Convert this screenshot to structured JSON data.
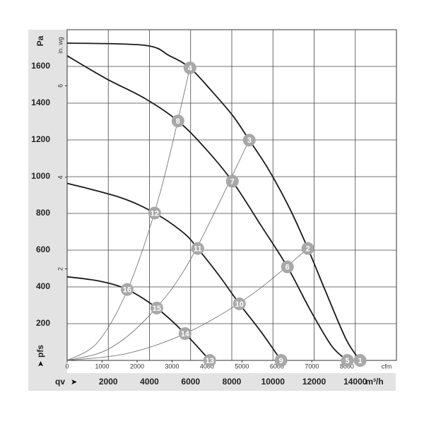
{
  "chart_data": {
    "type": "line",
    "y_label": "Pa",
    "y2_label": "in. wg",
    "x_label": "m³/h",
    "x2_label": "cfm",
    "x_symbol": "qv",
    "y_symbol": "pfs",
    "xlim": [
      0,
      16000
    ],
    "xticks": [
      2000,
      4000,
      6000,
      8000,
      10000,
      12000,
      14000
    ],
    "ylim": [
      0,
      1800
    ],
    "yticks": [
      200,
      400,
      600,
      800,
      1000,
      1200,
      1400,
      1600
    ],
    "x2lim": [
      0,
      9417.6
    ],
    "x2ticks": [
      0,
      1000,
      2000,
      3000,
      4000,
      5000,
      6000,
      7000,
      8000
    ],
    "y2lim": [
      0,
      7.226
    ],
    "y2ticks": [
      2,
      4,
      6
    ],
    "grid": true,
    "curves": [
      {
        "color": "#1a1a1a",
        "x": [
          0,
          3773,
          4974,
          5968,
          7032,
          8061,
          8850,
          9776,
          10805,
          11696,
          12520,
          13549,
          14235
        ],
        "values": [
          1727,
          1715,
          1658,
          1592,
          1465,
          1330,
          1199,
          1041,
          829,
          609,
          386,
          116,
          0
        ]
      },
      {
        "color": "#1a1a1a",
        "x": [
          0,
          1887,
          3773,
          5385,
          6689,
          8026,
          9433,
          10702,
          11834,
          12863,
          13617
        ],
        "values": [
          1658,
          1534,
          1426,
          1303,
          1157,
          975,
          732,
          509,
          270,
          77,
          0
        ]
      },
      {
        "color": "#1a1a1a",
        "x": [
          0,
          2573,
          4253,
          5660,
          6346,
          7375,
          8369,
          9433,
          10393
        ],
        "values": [
          964,
          887,
          802,
          694,
          609,
          463,
          308,
          154,
          0
        ]
      },
      {
        "color": "#1a1a1a",
        "x": [
          0,
          1544,
          2916,
          4356,
          5728,
          6929
        ],
        "values": [
          455,
          432,
          386,
          285,
          146,
          0
        ]
      }
    ],
    "system_curves": [
      {
        "color": "#666666",
        "x": [
          0,
          1500,
          3000,
          4500,
          5968
        ],
        "values": [
          0,
          101,
          402,
          905,
          1592
        ]
      },
      {
        "color": "#666666",
        "x": [
          0,
          2000,
          4000,
          6000,
          8850
        ],
        "values": [
          0,
          61,
          245,
          551,
          1199
        ]
      },
      {
        "color": "#666666",
        "x": [
          0,
          3000,
          6000,
          9000,
          11696
        ],
        "values": [
          0,
          40,
          160,
          361,
          609
        ]
      }
    ],
    "operating_points": {
      "color": "#a8a8a8",
      "labels": [
        "1",
        "2",
        "3",
        "4",
        "5",
        "6",
        "7",
        "8",
        "9",
        "10",
        "11",
        "12",
        "13",
        "14",
        "15",
        "16"
      ],
      "x": [
        14235,
        11696,
        8850,
        5968,
        13617,
        10702,
        8026,
        5385,
        10393,
        8369,
        6346,
        4253,
        6929,
        5728,
        4356,
        2916
      ],
      "values": [
        0,
        609,
        1199,
        1592,
        0,
        509,
        975,
        1303,
        0,
        308,
        609,
        802,
        0,
        146,
        285,
        386
      ]
    }
  }
}
